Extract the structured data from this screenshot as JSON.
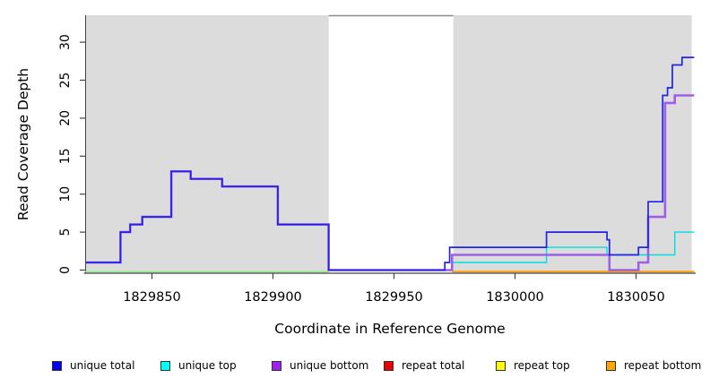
{
  "chart_data": {
    "type": "line",
    "subtype": "step-coverage-plot",
    "title": "",
    "xlabel": "Coordinate in Reference Genome",
    "ylabel": "Read Coverage Depth",
    "xlim": [
      1829822.5,
      1830074.5
    ],
    "ylim": [
      0,
      33.5
    ],
    "x_ticks": [
      1829850,
      1829900,
      1829950,
      1830000,
      1830050
    ],
    "y_ticks": [
      0,
      5,
      10,
      15,
      20,
      25,
      30
    ],
    "grid": false,
    "legend_position": "bottom",
    "plot_bg": "#ffffff",
    "shaded_regions": {
      "color": "#dcdcdc",
      "ranges": [
        [
          1829822.5,
          1829923
        ],
        [
          1829974.5,
          1830073
        ]
      ]
    },
    "gap_region": {
      "from": 1829923,
      "to": 1829974.5,
      "top_border_color": "#8c8c8c"
    },
    "unlabeled_baseline": {
      "color": "#90ee90",
      "from": 1829822.5,
      "to": 1829923,
      "value": 0
    },
    "series": [
      {
        "name": "unique total",
        "color": "#2222e8",
        "legend_color": "#0000ee",
        "width": 1.7,
        "points": [
          [
            1829822.5,
            1
          ],
          [
            1829837,
            5
          ],
          [
            1829841,
            6
          ],
          [
            1829846,
            7
          ],
          [
            1829858,
            13
          ],
          [
            1829866,
            12
          ],
          [
            1829879,
            11
          ],
          [
            1829902,
            6
          ],
          [
            1829923,
            0
          ],
          [
            1829971,
            1
          ],
          [
            1829973,
            3
          ],
          [
            1830013,
            5
          ],
          [
            1830038,
            4
          ],
          [
            1830039,
            2
          ],
          [
            1830051,
            3
          ],
          [
            1830055,
            9
          ],
          [
            1830061,
            23
          ],
          [
            1830063,
            24
          ],
          [
            1830065,
            27
          ],
          [
            1830069,
            28
          ]
        ],
        "x_end": 1830074
      },
      {
        "name": "unique top",
        "color": "#00dede",
        "legend_color": "#00ffff",
        "width": 1.4,
        "points": [
          [
            1829974,
            1
          ],
          [
            1830013,
            3
          ],
          [
            1830038,
            2
          ],
          [
            1830066,
            5
          ]
        ],
        "x_end": 1830074
      },
      {
        "name": "unique bottom",
        "color": "#9d5fe6",
        "legend_color": "#a020f0",
        "width": 2.6,
        "points": [
          [
            1829822.5,
            1
          ],
          [
            1829837,
            5
          ],
          [
            1829841,
            6
          ],
          [
            1829846,
            7
          ],
          [
            1829858,
            13
          ],
          [
            1829866,
            12
          ],
          [
            1829879,
            11
          ],
          [
            1829902,
            6
          ],
          [
            1829923,
            0
          ],
          [
            1829974,
            2
          ],
          [
            1830039,
            0
          ],
          [
            1830051,
            1
          ],
          [
            1830055,
            7
          ],
          [
            1830062,
            22
          ],
          [
            1830066,
            23
          ]
        ],
        "x_end": 1830074
      },
      {
        "name": "repeat total",
        "color": "#ee0000",
        "legend_color": "#ee0000",
        "width": 1.4,
        "offset_below_axis": true,
        "points": [
          [
            1829974,
            0
          ]
        ],
        "x_end": 1830074
      },
      {
        "name": "repeat top",
        "color": "#ffff00",
        "legend_color": "#ffff00",
        "width": 1.4,
        "offset_below_axis": true,
        "points": [
          [
            1829974,
            0
          ]
        ],
        "x_end": 1830074
      },
      {
        "name": "repeat bottom",
        "color": "#ff9f0a",
        "legend_color": "#ffa500",
        "width": 1.9,
        "offset_below_axis": true,
        "points": [
          [
            1829974,
            0
          ]
        ],
        "x_end": 1830074
      }
    ]
  }
}
